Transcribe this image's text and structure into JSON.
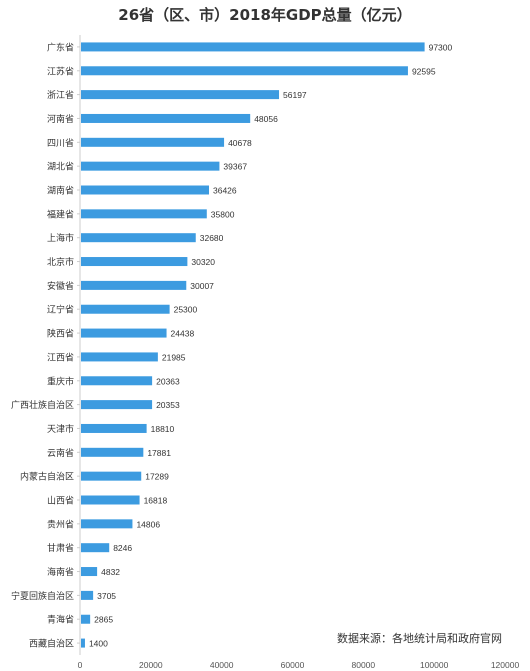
{
  "chart_data": {
    "type": "bar",
    "orientation": "horizontal",
    "title": "26省（区、市）2018年GDP总量（亿元）",
    "source": "数据来源：各地统计局和政府官网",
    "categories": [
      "广东省",
      "江苏省",
      "浙江省",
      "河南省",
      "四川省",
      "湖北省",
      "湖南省",
      "福建省",
      "上海市",
      "北京市",
      "安徽省",
      "辽宁省",
      "陕西省",
      "江西省",
      "重庆市",
      "广西壮族自治区",
      "天津市",
      "云南省",
      "内蒙古自治区",
      "山西省",
      "贵州省",
      "甘肃省",
      "海南省",
      "宁夏回族自治区",
      "青海省",
      "西藏自治区"
    ],
    "values": [
      97300,
      92595,
      56197,
      48056,
      40678,
      39367,
      36426,
      35800,
      32680,
      30320,
      30007,
      25300,
      24438,
      21985,
      20363,
      20353,
      18810,
      17881,
      17289,
      16818,
      14806,
      8246,
      4832,
      3705,
      2865,
      1400
    ],
    "xlim": [
      0,
      120000
    ],
    "xticks": [
      0,
      20000,
      40000,
      60000,
      80000,
      100000,
      120000
    ],
    "xtick_labels": [
      "0",
      "20000",
      "40000",
      "60000",
      "80000",
      "100000",
      "120000"
    ],
    "bar_color": "#3c9be0",
    "grid": false,
    "legend": "none"
  }
}
